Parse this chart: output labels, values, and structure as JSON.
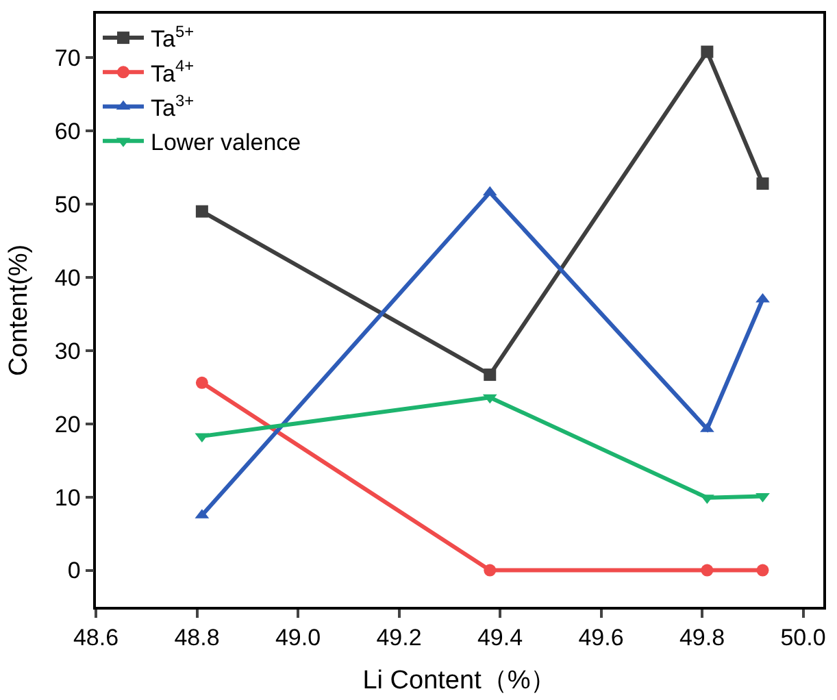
{
  "chart_data": {
    "type": "line",
    "xlabel": "Li Content（%）",
    "ylabel": "Content(%)",
    "x": [
      48.81,
      49.38,
      49.81,
      49.92
    ],
    "xlim": [
      48.6,
      50.04
    ],
    "xticks": [
      48.6,
      48.8,
      {
        "value": 49,
        "label": "49.0"
      },
      49.2,
      49.4,
      49.6,
      49.8,
      {
        "value": 50,
        "label": "50.0"
      }
    ],
    "ylim": [
      -5,
      76
    ],
    "yticks": [
      0,
      10,
      20,
      30,
      40,
      50,
      60,
      70
    ],
    "legend": "top left",
    "line_style": "solid",
    "series": [
      {
        "name": "Ta$^{5+}$",
        "color": "#3f3f3f",
        "marker": "square",
        "values": [
          49,
          26.7,
          70.8,
          52.8
        ]
      },
      {
        "name": "Ta$^{4+}$",
        "color": "#f04b4b",
        "marker": "circle",
        "values": [
          25.6,
          0,
          0,
          0
        ]
      },
      {
        "name": "Ta$^{3+}$",
        "color": "#2e5cb8",
        "marker": "triangle",
        "values": [
          7.5,
          51.6,
          19.3,
          37
        ]
      },
      {
        "name": "Lower valence",
        "color": "#1db46e",
        "marker": "triangle-down",
        "values": [
          18.3,
          23.6,
          9.9,
          10.1
        ]
      }
    ]
  }
}
